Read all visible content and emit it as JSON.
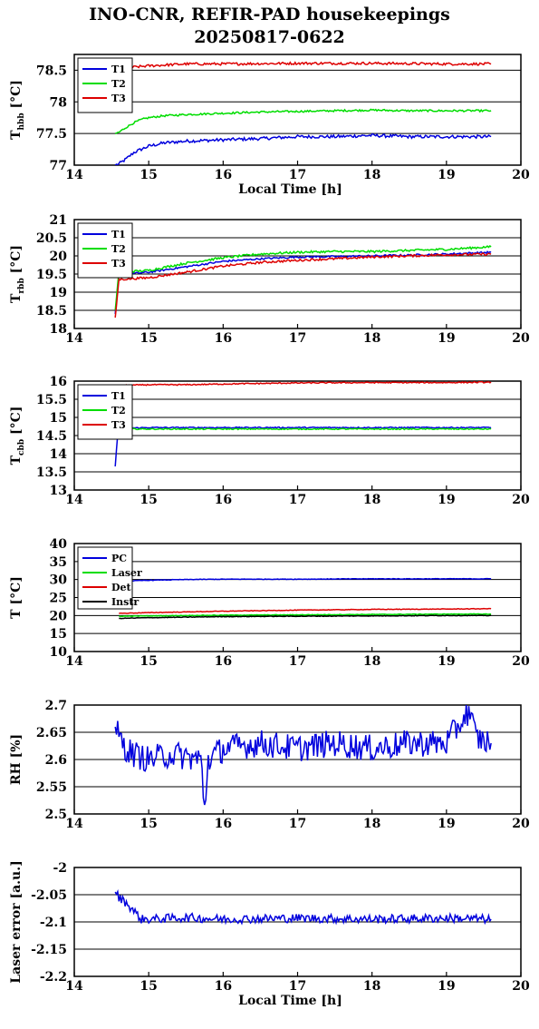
{
  "title_line1": "INO-CNR, REFIR-PAD housekeepings",
  "title_line2": "20250817-0622",
  "colors": {
    "blue": "#0000dd",
    "green": "#00dd00",
    "red": "#dd0000",
    "black": "#000000"
  },
  "chart_data": [
    {
      "type": "line",
      "ylabel_main": "T",
      "ylabel_sub": "hbb",
      "ylabel_unit": "[°C]",
      "xlabel": "Local Time [h]",
      "xlim": [
        14,
        20
      ],
      "ylim": [
        77,
        78.75
      ],
      "xticks": [
        "14",
        "15",
        "16",
        "17",
        "18",
        "19",
        "20"
      ],
      "yticks": [
        "77",
        "77.5",
        "78",
        "78.5"
      ],
      "ytick_values": [
        77,
        77.5,
        78,
        78.5
      ],
      "grid": "horizontal",
      "legend": "top-left",
      "series": [
        {
          "name": "T1",
          "color": "#0000dd",
          "points": [
            [
              14.55,
              77.0
            ],
            [
              14.6,
              77.02
            ],
            [
              14.7,
              77.1
            ],
            [
              14.8,
              77.2
            ],
            [
              14.9,
              77.25
            ],
            [
              15.0,
              77.3
            ],
            [
              15.2,
              77.35
            ],
            [
              15.5,
              77.38
            ],
            [
              16.0,
              77.4
            ],
            [
              16.5,
              77.42
            ],
            [
              17.0,
              77.45
            ],
            [
              17.5,
              77.45
            ],
            [
              18.0,
              77.47
            ],
            [
              18.5,
              77.45
            ],
            [
              19.0,
              77.45
            ],
            [
              19.6,
              77.45
            ]
          ],
          "noise": 0.025
        },
        {
          "name": "T2",
          "color": "#00dd00",
          "points": [
            [
              14.55,
              77.5
            ],
            [
              14.6,
              77.52
            ],
            [
              14.7,
              77.6
            ],
            [
              14.8,
              77.67
            ],
            [
              14.9,
              77.72
            ],
            [
              15.0,
              77.75
            ],
            [
              15.2,
              77.78
            ],
            [
              15.5,
              77.8
            ],
            [
              16.0,
              77.82
            ],
            [
              16.5,
              77.84
            ],
            [
              17.0,
              77.85
            ],
            [
              17.5,
              77.86
            ],
            [
              18.0,
              77.87
            ],
            [
              18.5,
              77.86
            ],
            [
              19.0,
              77.86
            ],
            [
              19.6,
              77.86
            ]
          ],
          "noise": 0.015
        },
        {
          "name": "T3",
          "color": "#dd0000",
          "points": [
            [
              14.6,
              78.45
            ],
            [
              14.7,
              78.52
            ],
            [
              14.8,
              78.55
            ],
            [
              15.0,
              78.57
            ],
            [
              15.5,
              78.6
            ],
            [
              16.0,
              78.6
            ],
            [
              17.0,
              78.61
            ],
            [
              18.0,
              78.61
            ],
            [
              19.0,
              78.6
            ],
            [
              19.6,
              78.6
            ]
          ],
          "noise": 0.02
        }
      ],
      "legend_entries": [
        "T1",
        "T2",
        "T3"
      ]
    },
    {
      "type": "line",
      "ylabel_main": "T",
      "ylabel_sub": "rbb",
      "ylabel_unit": "[°C]",
      "xlabel": "",
      "xlim": [
        14,
        20
      ],
      "ylim": [
        18,
        21
      ],
      "xticks": [
        "14",
        "15",
        "16",
        "17",
        "18",
        "19",
        "20"
      ],
      "yticks": [
        "18",
        "18.5",
        "19",
        "19.5",
        "20",
        "20.5",
        "21"
      ],
      "ytick_values": [
        18,
        18.5,
        19,
        19.5,
        20,
        20.5,
        21
      ],
      "grid": "horizontal",
      "legend": "top-left",
      "series": [
        {
          "name": "T1",
          "color": "#0000dd",
          "points": [
            [
              14.55,
              18.4
            ],
            [
              14.6,
              19.5
            ],
            [
              14.7,
              19.5
            ],
            [
              15.0,
              19.55
            ],
            [
              15.5,
              19.7
            ],
            [
              16.0,
              19.85
            ],
            [
              16.5,
              19.92
            ],
            [
              17.0,
              19.97
            ],
            [
              17.5,
              19.98
            ],
            [
              18.0,
              20.0
            ],
            [
              18.5,
              20.02
            ],
            [
              19.0,
              20.05
            ],
            [
              19.6,
              20.1
            ]
          ],
          "noise": 0.025
        },
        {
          "name": "T2",
          "color": "#00dd00",
          "points": [
            [
              14.55,
              18.5
            ],
            [
              14.6,
              19.55
            ],
            [
              15.0,
              19.6
            ],
            [
              15.5,
              19.8
            ],
            [
              16.0,
              19.95
            ],
            [
              16.5,
              20.05
            ],
            [
              17.0,
              20.1
            ],
            [
              17.5,
              20.12
            ],
            [
              18.0,
              20.12
            ],
            [
              18.5,
              20.15
            ],
            [
              19.0,
              20.18
            ],
            [
              19.6,
              20.25
            ]
          ],
          "noise": 0.03
        },
        {
          "name": "T3",
          "color": "#dd0000",
          "points": [
            [
              14.55,
              18.3
            ],
            [
              14.6,
              19.35
            ],
            [
              15.0,
              19.4
            ],
            [
              15.5,
              19.55
            ],
            [
              16.0,
              19.72
            ],
            [
              16.5,
              19.82
            ],
            [
              17.0,
              19.88
            ],
            [
              17.5,
              19.92
            ],
            [
              18.0,
              19.97
            ],
            [
              18.5,
              20.0
            ],
            [
              19.0,
              20.03
            ],
            [
              19.6,
              20.05
            ]
          ],
          "noise": 0.03
        }
      ],
      "legend_entries": [
        "T1",
        "T2",
        "T3"
      ]
    },
    {
      "type": "line",
      "ylabel_main": "T",
      "ylabel_sub": "cbb",
      "ylabel_unit": "[°C]",
      "xlabel": "",
      "xlim": [
        14,
        20
      ],
      "ylim": [
        13,
        16
      ],
      "xticks": [
        "14",
        "15",
        "16",
        "17",
        "18",
        "19",
        "20"
      ],
      "yticks": [
        "13",
        "13.5",
        "14",
        "14.5",
        "15",
        "15.5",
        "16"
      ],
      "ytick_values": [
        13,
        13.5,
        14,
        14.5,
        15,
        15.5,
        16
      ],
      "grid": "horizontal",
      "legend": "top-left",
      "series": [
        {
          "name": "T1",
          "color": "#0000dd",
          "points": [
            [
              14.55,
              13.65
            ],
            [
              14.58,
              14.5
            ],
            [
              14.62,
              14.7
            ],
            [
              15.0,
              14.72
            ],
            [
              16.0,
              14.72
            ],
            [
              17.0,
              14.72
            ],
            [
              18.0,
              14.72
            ],
            [
              19.0,
              14.72
            ],
            [
              19.6,
              14.72
            ]
          ],
          "noise": 0.015
        },
        {
          "name": "T2",
          "color": "#00dd00",
          "points": [
            [
              14.6,
              14.68
            ],
            [
              15.0,
              14.68
            ],
            [
              16.0,
              14.68
            ],
            [
              17.0,
              14.68
            ],
            [
              18.0,
              14.68
            ],
            [
              19.0,
              14.68
            ],
            [
              19.6,
              14.68
            ]
          ],
          "noise": 0.015
        },
        {
          "name": "T3",
          "color": "#dd0000",
          "points": [
            [
              14.6,
              15.88
            ],
            [
              15.0,
              15.9
            ],
            [
              15.5,
              15.9
            ],
            [
              16.0,
              15.92
            ],
            [
              17.0,
              15.95
            ],
            [
              18.0,
              15.96
            ],
            [
              19.0,
              15.96
            ],
            [
              19.6,
              15.97
            ]
          ],
          "noise": 0.015
        }
      ],
      "legend_entries": [
        "T1",
        "T2",
        "T3"
      ]
    },
    {
      "type": "line",
      "ylabel_main": "T [°C]",
      "ylabel_sub": "",
      "ylabel_unit": "",
      "xlabel": "",
      "xlim": [
        14,
        20
      ],
      "ylim": [
        10,
        40
      ],
      "xticks": [
        "14",
        "15",
        "16",
        "17",
        "18",
        "19",
        "20"
      ],
      "yticks": [
        "10",
        "15",
        "20",
        "25",
        "30",
        "35",
        "40"
      ],
      "ytick_values": [
        10,
        15,
        20,
        25,
        30,
        35,
        40
      ],
      "grid": "horizontal",
      "legend": "top-left",
      "series": [
        {
          "name": "PC",
          "color": "#0000dd",
          "points": [
            [
              14.6,
              29.5
            ],
            [
              15.0,
              29.8
            ],
            [
              15.5,
              30.0
            ],
            [
              16.0,
              30.1
            ],
            [
              17.0,
              30.1
            ],
            [
              18.0,
              30.2
            ],
            [
              19.0,
              30.2
            ],
            [
              19.6,
              30.2
            ]
          ],
          "noise": 0.08
        },
        {
          "name": "Laser",
          "color": "#00dd00",
          "points": [
            [
              14.6,
              19.8
            ],
            [
              15.0,
              19.9
            ],
            [
              16.0,
              20.1
            ],
            [
              17.0,
              20.2
            ],
            [
              18.0,
              20.3
            ],
            [
              19.0,
              20.4
            ],
            [
              19.6,
              20.4
            ]
          ],
          "noise": 0.08
        },
        {
          "name": "Det",
          "color": "#dd0000",
          "points": [
            [
              14.6,
              20.6
            ],
            [
              15.0,
              20.8
            ],
            [
              16.0,
              21.2
            ],
            [
              17.0,
              21.5
            ],
            [
              18.0,
              21.7
            ],
            [
              19.0,
              21.8
            ],
            [
              19.6,
              21.9
            ]
          ],
          "noise": 0.08
        },
        {
          "name": "Instr",
          "color": "#000000",
          "points": [
            [
              14.6,
              19.2
            ],
            [
              15.0,
              19.4
            ],
            [
              16.0,
              19.7
            ],
            [
              17.0,
              19.8
            ],
            [
              18.0,
              19.9
            ],
            [
              19.0,
              20.0
            ],
            [
              19.6,
              20.0
            ]
          ],
          "noise": 0.08
        }
      ],
      "legend_entries": [
        "PC",
        "Laser",
        "Det",
        "Instr"
      ]
    },
    {
      "type": "line",
      "ylabel_main": "RH [%]",
      "ylabel_sub": "",
      "ylabel_unit": "",
      "xlabel": "",
      "xlim": [
        14,
        20
      ],
      "ylim": [
        2.5,
        2.7
      ],
      "xticks": [
        "14",
        "15",
        "16",
        "17",
        "18",
        "19",
        "20"
      ],
      "yticks": [
        "2.5",
        "2.55",
        "2.6",
        "2.65",
        "2.7"
      ],
      "ytick_values": [
        2.5,
        2.55,
        2.6,
        2.65,
        2.7
      ],
      "grid": "horizontal",
      "legend": "none",
      "series": [
        {
          "name": "",
          "color": "#0000dd",
          "points": [
            [
              14.55,
              2.66
            ],
            [
              14.6,
              2.64
            ],
            [
              14.7,
              2.62
            ],
            [
              14.8,
              2.61
            ],
            [
              15.0,
              2.6
            ],
            [
              15.3,
              2.61
            ],
            [
              15.7,
              2.6
            ],
            [
              15.75,
              2.51
            ],
            [
              15.8,
              2.6
            ],
            [
              16.0,
              2.62
            ],
            [
              16.5,
              2.63
            ],
            [
              17.0,
              2.62
            ],
            [
              17.5,
              2.63
            ],
            [
              18.0,
              2.62
            ],
            [
              18.5,
              2.63
            ],
            [
              19.0,
              2.63
            ],
            [
              19.3,
              2.69
            ],
            [
              19.4,
              2.64
            ],
            [
              19.6,
              2.63
            ]
          ],
          "noise": 0.025
        }
      ],
      "legend_entries": []
    },
    {
      "type": "line",
      "ylabel_main": "Laser error [a.u.]",
      "ylabel_sub": "",
      "ylabel_unit": "",
      "xlabel": "Local Time [h]",
      "xlim": [
        14,
        20
      ],
      "ylim": [
        -2.2,
        -2.0
      ],
      "xticks": [
        "14",
        "15",
        "16",
        "17",
        "18",
        "19",
        "20"
      ],
      "yticks": [
        "-2.2",
        "-2.15",
        "-2.1",
        "-2.05",
        "-2"
      ],
      "ytick_values": [
        -2.2,
        -2.15,
        -2.1,
        -2.05,
        -2.0
      ],
      "grid": "horizontal",
      "legend": "none",
      "series": [
        {
          "name": "",
          "color": "#0000dd",
          "points": [
            [
              14.55,
              -2.045
            ],
            [
              14.6,
              -2.055
            ],
            [
              14.7,
              -2.065
            ],
            [
              14.8,
              -2.08
            ],
            [
              14.9,
              -2.095
            ],
            [
              15.0,
              -2.095
            ],
            [
              15.5,
              -2.092
            ],
            [
              16.0,
              -2.095
            ],
            [
              17.0,
              -2.093
            ],
            [
              18.0,
              -2.095
            ],
            [
              19.0,
              -2.093
            ],
            [
              19.6,
              -2.095
            ]
          ],
          "noise": 0.008
        }
      ],
      "legend_entries": []
    }
  ]
}
